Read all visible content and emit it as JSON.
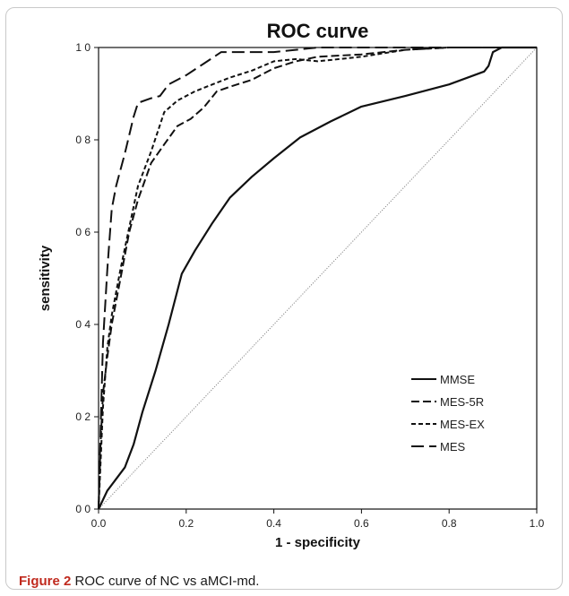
{
  "chart_data": {
    "type": "line",
    "title": "ROC curve",
    "xlabel": "1 - specificity",
    "ylabel": "sensitivity",
    "xlim": [
      0,
      1
    ],
    "ylim": [
      0,
      1
    ],
    "x_ticks": [
      "0.0",
      "0.2",
      "0.4",
      "0.6",
      "0.8",
      "1.0"
    ],
    "y_ticks": [
      "0 0",
      "0 2",
      "0 4",
      "0 6",
      "0 8",
      "1 0"
    ],
    "grid": false,
    "legend_position": "bottom-right",
    "reference_line": {
      "x": [
        0,
        1
      ],
      "y": [
        0,
        1
      ]
    },
    "series": [
      {
        "name": "MMSE",
        "style": "solid",
        "x": [
          0,
          0.02,
          0.06,
          0.08,
          0.1,
          0.13,
          0.16,
          0.19,
          0.22,
          0.26,
          0.3,
          0.35,
          0.4,
          0.46,
          0.53,
          0.6,
          0.7,
          0.8,
          0.88,
          0.89,
          0.9,
          0.92,
          0.95,
          1.0
        ],
        "y": [
          0,
          0.04,
          0.09,
          0.14,
          0.21,
          0.3,
          0.4,
          0.51,
          0.56,
          0.62,
          0.675,
          0.72,
          0.76,
          0.805,
          0.84,
          0.872,
          0.895,
          0.92,
          0.948,
          0.96,
          0.99,
          1.0,
          1.0,
          1.0
        ]
      },
      {
        "name": "MES-5R",
        "style": "dashed",
        "x": [
          0,
          0.005,
          0.01,
          0.02,
          0.03,
          0.05,
          0.07,
          0.09,
          0.12,
          0.15,
          0.18,
          0.21,
          0.24,
          0.27,
          0.3,
          0.35,
          0.4,
          0.45,
          0.5,
          0.6,
          0.7,
          0.8,
          1.0
        ],
        "y": [
          0,
          0.15,
          0.25,
          0.33,
          0.4,
          0.5,
          0.6,
          0.67,
          0.75,
          0.79,
          0.83,
          0.845,
          0.87,
          0.905,
          0.915,
          0.93,
          0.955,
          0.97,
          0.98,
          0.985,
          0.995,
          1.0,
          1.0
        ]
      },
      {
        "name": "MES-EX",
        "style": "dashed-short",
        "x": [
          0,
          0.01,
          0.02,
          0.03,
          0.05,
          0.07,
          0.09,
          0.12,
          0.15,
          0.18,
          0.22,
          0.26,
          0.3,
          0.35,
          0.4,
          0.45,
          0.5,
          0.55,
          0.6,
          0.7,
          0.8,
          1.0
        ],
        "y": [
          0,
          0.22,
          0.35,
          0.42,
          0.52,
          0.61,
          0.7,
          0.775,
          0.86,
          0.885,
          0.905,
          0.92,
          0.935,
          0.95,
          0.97,
          0.975,
          0.97,
          0.975,
          0.98,
          0.995,
          1.0,
          1.0
        ]
      },
      {
        "name": "MES",
        "style": "dashed-long",
        "x": [
          0,
          0.005,
          0.01,
          0.02,
          0.03,
          0.04,
          0.06,
          0.08,
          0.09,
          0.12,
          0.14,
          0.16,
          0.2,
          0.24,
          0.28,
          0.32,
          0.36,
          0.4,
          0.45,
          0.5,
          0.6,
          0.7,
          0.75,
          1.0
        ],
        "y": [
          0,
          0.18,
          0.36,
          0.52,
          0.65,
          0.7,
          0.77,
          0.85,
          0.88,
          0.89,
          0.895,
          0.92,
          0.94,
          0.965,
          0.99,
          0.99,
          0.99,
          0.99,
          0.995,
          1.0,
          1.0,
          1.0,
          1.0,
          1.0
        ]
      }
    ]
  },
  "caption": {
    "label": "Figure 2",
    "text": " ROC curve of NC vs aMCI-md."
  }
}
